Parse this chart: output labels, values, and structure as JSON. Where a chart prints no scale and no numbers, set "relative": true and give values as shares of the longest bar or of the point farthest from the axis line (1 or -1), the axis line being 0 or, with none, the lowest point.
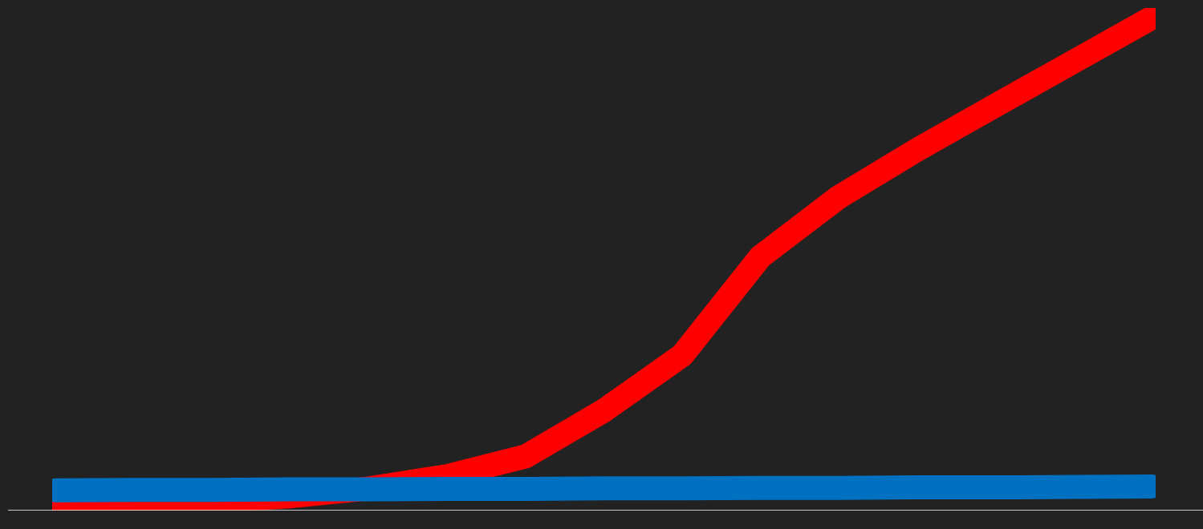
{
  "chart_data": {
    "type": "line",
    "relative": true,
    "categories": [
      null,
      null,
      null,
      null,
      null,
      null,
      null,
      null,
      null,
      null,
      null,
      null,
      null,
      null,
      null
    ],
    "series": [
      {
        "color": "#ff0000",
        "values": [
          0.015,
          0.015,
          0.02,
          0.029,
          0.045,
          0.07,
          0.11,
          0.203,
          0.315,
          0.515,
          0.636,
          0.732,
          0.822,
          0.911,
          1.0
        ]
      },
      {
        "color": "#0070c0",
        "values": [
          0.041,
          0.042,
          0.042,
          0.043,
          0.043,
          0.044,
          0.044,
          0.045,
          0.045,
          0.046,
          0.046,
          0.047,
          0.047,
          0.048,
          0.049
        ]
      }
    ],
    "marker": "none",
    "line_style": "solid"
  }
}
